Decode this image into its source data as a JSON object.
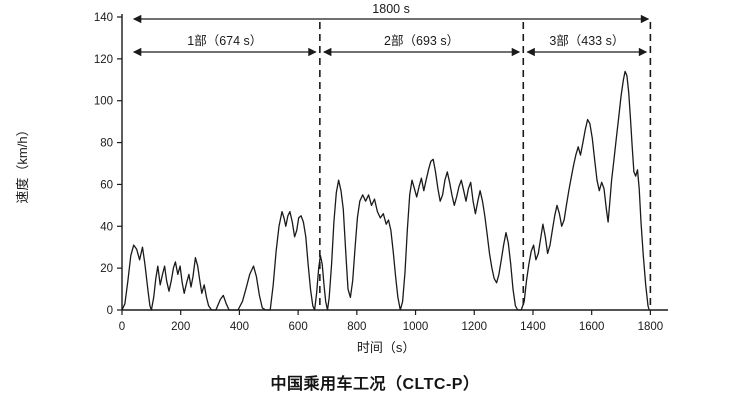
{
  "page": {
    "background": "#ffffff"
  },
  "chart_data": {
    "type": "line",
    "title": "中国乘用车工况（CLTC-P）",
    "xlabel": "时间（s）",
    "ylabel": "速度（km/h）",
    "xlim": [
      0,
      1860
    ],
    "ylim": [
      0,
      140
    ],
    "xticks": [
      0,
      200,
      400,
      600,
      800,
      1000,
      1200,
      1400,
      1600,
      1800
    ],
    "yticks": [
      0,
      20,
      40,
      60,
      80,
      100,
      120,
      140
    ],
    "grid": false,
    "legend": "none",
    "line_color": "#1a1a1a",
    "total_annotation": {
      "label": "1800 s",
      "start": 0,
      "end": 1800
    },
    "phases": [
      {
        "label": "1部（674 s）",
        "start": 0,
        "end": 674
      },
      {
        "label": "2部（693 s）",
        "start": 674,
        "end": 1367
      },
      {
        "label": "3部（433 s）",
        "start": 1367,
        "end": 1800
      }
    ],
    "dashed_lines_x": [
      674,
      1367,
      1800
    ],
    "series": [
      {
        "name": "CLTC-P speed profile",
        "points": [
          [
            0,
            0
          ],
          [
            10,
            3
          ],
          [
            20,
            14
          ],
          [
            30,
            26
          ],
          [
            40,
            31
          ],
          [
            50,
            29
          ],
          [
            60,
            24
          ],
          [
            70,
            30
          ],
          [
            78,
            22
          ],
          [
            88,
            10
          ],
          [
            95,
            2
          ],
          [
            100,
            0
          ],
          [
            108,
            6
          ],
          [
            115,
            15
          ],
          [
            122,
            21
          ],
          [
            130,
            12
          ],
          [
            138,
            17
          ],
          [
            145,
            21
          ],
          [
            152,
            14
          ],
          [
            160,
            9
          ],
          [
            168,
            14
          ],
          [
            175,
            20
          ],
          [
            182,
            23
          ],
          [
            190,
            17
          ],
          [
            198,
            21
          ],
          [
            205,
            13
          ],
          [
            212,
            8
          ],
          [
            220,
            13
          ],
          [
            228,
            17
          ],
          [
            235,
            11
          ],
          [
            242,
            16
          ],
          [
            250,
            25
          ],
          [
            258,
            21
          ],
          [
            265,
            14
          ],
          [
            272,
            8
          ],
          [
            280,
            12
          ],
          [
            288,
            6
          ],
          [
            295,
            2
          ],
          [
            305,
            0
          ],
          [
            320,
            0
          ],
          [
            335,
            5
          ],
          [
            345,
            7
          ],
          [
            355,
            3
          ],
          [
            365,
            0
          ],
          [
            395,
            0
          ],
          [
            410,
            4
          ],
          [
            422,
            10
          ],
          [
            435,
            17
          ],
          [
            448,
            21
          ],
          [
            458,
            16
          ],
          [
            468,
            7
          ],
          [
            478,
            1
          ],
          [
            490,
            0
          ],
          [
            505,
            0
          ],
          [
            515,
            12
          ],
          [
            525,
            28
          ],
          [
            535,
            40
          ],
          [
            545,
            47
          ],
          [
            552,
            44
          ],
          [
            558,
            40
          ],
          [
            565,
            45
          ],
          [
            572,
            47
          ],
          [
            580,
            42
          ],
          [
            588,
            35
          ],
          [
            595,
            38
          ],
          [
            602,
            44
          ],
          [
            610,
            45
          ],
          [
            618,
            42
          ],
          [
            626,
            35
          ],
          [
            634,
            22
          ],
          [
            642,
            10
          ],
          [
            650,
            2
          ],
          [
            656,
            0
          ],
          [
            663,
            8
          ],
          [
            670,
            20
          ],
          [
            676,
            26
          ],
          [
            682,
            22
          ],
          [
            688,
            12
          ],
          [
            694,
            4
          ],
          [
            700,
            0
          ],
          [
            706,
            6
          ],
          [
            714,
            22
          ],
          [
            722,
            42
          ],
          [
            730,
            56
          ],
          [
            738,
            62
          ],
          [
            746,
            57
          ],
          [
            754,
            48
          ],
          [
            762,
            28
          ],
          [
            770,
            10
          ],
          [
            778,
            6
          ],
          [
            786,
            14
          ],
          [
            794,
            30
          ],
          [
            802,
            44
          ],
          [
            810,
            52
          ],
          [
            820,
            55
          ],
          [
            830,
            52
          ],
          [
            840,
            55
          ],
          [
            850,
            50
          ],
          [
            860,
            53
          ],
          [
            870,
            47
          ],
          [
            880,
            44
          ],
          [
            890,
            46
          ],
          [
            900,
            41
          ],
          [
            908,
            43
          ],
          [
            916,
            38
          ],
          [
            924,
            28
          ],
          [
            932,
            16
          ],
          [
            940,
            6
          ],
          [
            948,
            0
          ],
          [
            956,
            4
          ],
          [
            964,
            18
          ],
          [
            972,
            38
          ],
          [
            980,
            55
          ],
          [
            988,
            62
          ],
          [
            996,
            58
          ],
          [
            1004,
            54
          ],
          [
            1012,
            59
          ],
          [
            1020,
            63
          ],
          [
            1028,
            57
          ],
          [
            1036,
            62
          ],
          [
            1044,
            67
          ],
          [
            1052,
            71
          ],
          [
            1060,
            72
          ],
          [
            1068,
            66
          ],
          [
            1076,
            58
          ],
          [
            1084,
            52
          ],
          [
            1092,
            55
          ],
          [
            1100,
            62
          ],
          [
            1108,
            66
          ],
          [
            1116,
            61
          ],
          [
            1124,
            55
          ],
          [
            1132,
            50
          ],
          [
            1140,
            54
          ],
          [
            1148,
            59
          ],
          [
            1156,
            62
          ],
          [
            1164,
            57
          ],
          [
            1172,
            52
          ],
          [
            1180,
            58
          ],
          [
            1188,
            61
          ],
          [
            1196,
            52
          ],
          [
            1204,
            46
          ],
          [
            1212,
            52
          ],
          [
            1220,
            57
          ],
          [
            1228,
            52
          ],
          [
            1236,
            45
          ],
          [
            1244,
            36
          ],
          [
            1252,
            27
          ],
          [
            1260,
            20
          ],
          [
            1268,
            15
          ],
          [
            1276,
            13
          ],
          [
            1284,
            17
          ],
          [
            1292,
            24
          ],
          [
            1300,
            31
          ],
          [
            1308,
            37
          ],
          [
            1316,
            32
          ],
          [
            1324,
            22
          ],
          [
            1332,
            10
          ],
          [
            1340,
            2
          ],
          [
            1348,
            0
          ],
          [
            1360,
            0
          ],
          [
            1370,
            4
          ],
          [
            1378,
            14
          ],
          [
            1386,
            22
          ],
          [
            1394,
            28
          ],
          [
            1402,
            31
          ],
          [
            1410,
            24
          ],
          [
            1418,
            27
          ],
          [
            1426,
            34
          ],
          [
            1434,
            41
          ],
          [
            1442,
            35
          ],
          [
            1450,
            27
          ],
          [
            1458,
            31
          ],
          [
            1466,
            38
          ],
          [
            1474,
            45
          ],
          [
            1482,
            50
          ],
          [
            1490,
            46
          ],
          [
            1498,
            40
          ],
          [
            1506,
            43
          ],
          [
            1514,
            50
          ],
          [
            1522,
            57
          ],
          [
            1530,
            63
          ],
          [
            1538,
            69
          ],
          [
            1546,
            74
          ],
          [
            1554,
            78
          ],
          [
            1562,
            74
          ],
          [
            1570,
            80
          ],
          [
            1578,
            86
          ],
          [
            1586,
            91
          ],
          [
            1594,
            89
          ],
          [
            1602,
            82
          ],
          [
            1610,
            72
          ],
          [
            1618,
            62
          ],
          [
            1626,
            57
          ],
          [
            1634,
            61
          ],
          [
            1642,
            58
          ],
          [
            1650,
            48
          ],
          [
            1656,
            42
          ],
          [
            1662,
            52
          ],
          [
            1668,
            62
          ],
          [
            1676,
            72
          ],
          [
            1684,
            82
          ],
          [
            1692,
            92
          ],
          [
            1700,
            102
          ],
          [
            1708,
            110
          ],
          [
            1714,
            114
          ],
          [
            1720,
            112
          ],
          [
            1726,
            104
          ],
          [
            1732,
            92
          ],
          [
            1738,
            78
          ],
          [
            1744,
            66
          ],
          [
            1750,
            64
          ],
          [
            1756,
            67
          ],
          [
            1762,
            58
          ],
          [
            1768,
            42
          ],
          [
            1776,
            26
          ],
          [
            1784,
            12
          ],
          [
            1792,
            2
          ],
          [
            1796,
            0
          ]
        ]
      }
    ]
  }
}
